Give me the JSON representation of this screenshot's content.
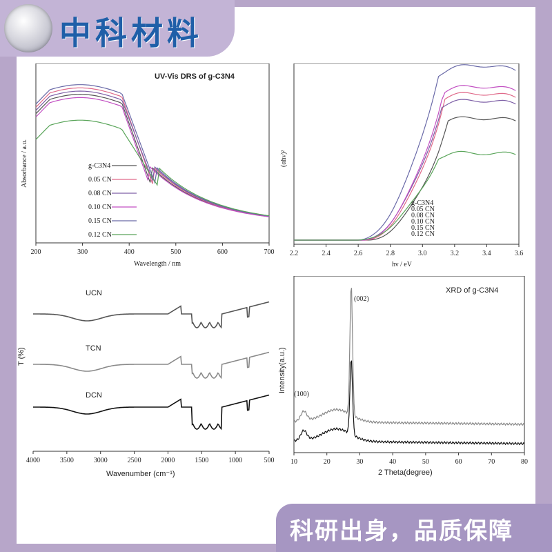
{
  "header": {
    "brand": "中科材料"
  },
  "footer": {
    "slogan": "科研出身，品质保障"
  },
  "colors": {
    "frame": "#b7a6c9",
    "header": "#c3b4d6",
    "footer": "#a696c2",
    "brand_text": "#1f5fa8"
  },
  "chart_data": [
    {
      "type": "line",
      "panel": "uv-vis-absorbance",
      "title": "UV-Vis DRS of g-C3N4",
      "xlabel": "Wavelength / nm",
      "ylabel": "Absorbance / a.u.",
      "xlim": [
        200,
        700
      ],
      "xticks": [
        "200",
        "300",
        "400",
        "500",
        "600",
        "700"
      ],
      "legend_position": "center-left",
      "series": [
        {
          "name": "g-C3N4",
          "color": "#555555",
          "edge": 448,
          "level": 0.86
        },
        {
          "name": "0.05 CN",
          "color": "#e06a8a",
          "edge": 452,
          "level": 0.9
        },
        {
          "name": "0.08 CN",
          "color": "#7d5fa6",
          "edge": 455,
          "level": 0.88
        },
        {
          "name": "0.10 CN",
          "color": "#c24fc2",
          "edge": 445,
          "level": 0.84
        },
        {
          "name": "0.15 CN",
          "color": "#6a6aa8",
          "edge": 458,
          "level": 0.92
        },
        {
          "name": "0.12 CN",
          "color": "#5aa55a",
          "edge": 462,
          "level": 0.7
        }
      ]
    },
    {
      "type": "line",
      "panel": "tauc-plot",
      "xlabel": "hν / eV",
      "ylabel": "(αhν)²",
      "xlim": [
        2.2,
        3.6
      ],
      "xticks": [
        "2.2",
        "2.4",
        "2.6",
        "2.8",
        "3.0",
        "3.2",
        "3.4",
        "3.6"
      ],
      "legend_position": "center",
      "series": [
        {
          "name": "g-C3N4",
          "color": "#555555"
        },
        {
          "name": "0.05 CN",
          "color": "#e06a8a"
        },
        {
          "name": "0.08 CN",
          "color": "#7d5fa6"
        },
        {
          "name": "0.10 CN",
          "color": "#c24fc2"
        },
        {
          "name": "0.15 CN",
          "color": "#6a6aa8"
        },
        {
          "name": "0.12 CN",
          "color": "#5aa55a"
        }
      ]
    },
    {
      "type": "line",
      "panel": "ftir",
      "xlabel": "Wavenumber (cm⁻¹)",
      "ylabel": "T (%)",
      "xlim": [
        4000,
        500
      ],
      "xticks": [
        "4000",
        "3500",
        "3000",
        "2500",
        "2000",
        "1500",
        "1000",
        "500"
      ],
      "series": [
        {
          "name": "UCN",
          "color": "#555555"
        },
        {
          "name": "TCN",
          "color": "#8a8a8a"
        },
        {
          "name": "DCN",
          "color": "#111111"
        }
      ]
    },
    {
      "type": "line",
      "panel": "xrd",
      "title": "XRD of g-C3N4",
      "xlabel": "2 Theta(degree)",
      "ylabel": "Intensity(a.u.)",
      "xlim": [
        10,
        80
      ],
      "xticks": [
        "10",
        "20",
        "30",
        "40",
        "50",
        "60",
        "70",
        "80"
      ],
      "annotations": [
        {
          "text": "(002)",
          "x": 27.4
        },
        {
          "text": "(100)",
          "x": 13.0
        }
      ],
      "series": [
        {
          "name": "",
          "color": "#888888"
        },
        {
          "name": "",
          "color": "#111111"
        }
      ]
    }
  ]
}
